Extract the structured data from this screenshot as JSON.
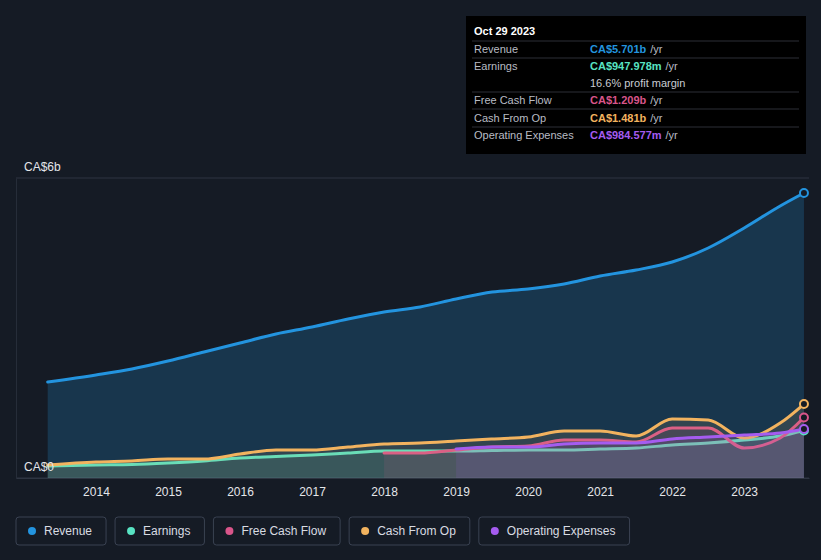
{
  "chart_data": {
    "type": "area",
    "x": [
      2013.33,
      2014,
      2014.5,
      2015,
      2015.5,
      2016,
      2016.5,
      2017,
      2017.5,
      2018,
      2018.5,
      2019,
      2019.5,
      2020,
      2020.5,
      2021,
      2021.5,
      2022,
      2022.5,
      2023,
      2023.5,
      2023.83
    ],
    "series": [
      {
        "name": "Revenue",
        "color": "#2394df",
        "values": [
          1.92,
          2.06,
          2.18,
          2.34,
          2.52,
          2.7,
          2.88,
          3.02,
          3.18,
          3.32,
          3.42,
          3.58,
          3.72,
          3.78,
          3.88,
          4.04,
          4.16,
          4.32,
          4.6,
          5.0,
          5.44,
          5.7
        ]
      },
      {
        "name": "Earnings",
        "color": "#58e3c3",
        "values": [
          0.24,
          0.26,
          0.27,
          0.3,
          0.34,
          0.4,
          0.43,
          0.46,
          0.5,
          0.54,
          0.54,
          0.54,
          0.55,
          0.56,
          0.56,
          0.58,
          0.6,
          0.66,
          0.7,
          0.76,
          0.84,
          0.95
        ]
      },
      {
        "name": "Free Cash Flow",
        "color": "#d9558a",
        "values": [
          null,
          null,
          null,
          null,
          null,
          null,
          null,
          null,
          null,
          0.5,
          0.5,
          0.56,
          0.62,
          0.64,
          0.76,
          0.76,
          0.72,
          1.0,
          1.0,
          0.6,
          0.8,
          1.21
        ]
      },
      {
        "name": "Cash From Op",
        "color": "#f2b35f",
        "values": [
          0.26,
          0.32,
          0.34,
          0.38,
          0.38,
          0.48,
          0.56,
          0.56,
          0.62,
          0.68,
          0.7,
          0.74,
          0.78,
          0.82,
          0.94,
          0.94,
          0.84,
          1.18,
          1.16,
          0.8,
          1.1,
          1.48
        ]
      },
      {
        "name": "Operating Expenses",
        "color": "#a55cf0",
        "values": [
          null,
          null,
          null,
          null,
          null,
          null,
          null,
          null,
          null,
          null,
          null,
          0.58,
          0.62,
          0.62,
          0.68,
          0.7,
          0.7,
          0.78,
          0.82,
          0.86,
          0.9,
          0.98
        ]
      }
    ],
    "xlim": [
      2012.89,
      2023.9
    ],
    "xticks": [
      2014,
      2015,
      2016,
      2017,
      2018,
      2019,
      2020,
      2021,
      2022,
      2023
    ],
    "ylim": [
      0,
      6
    ],
    "yticks": [
      {
        "value": 0,
        "label": "CA$0"
      },
      {
        "value": 6,
        "label": "CA$6b"
      }
    ],
    "grid": true,
    "legend": "bottom",
    "tooltip": {
      "date": "Oct 29 2023",
      "unit": "/yr",
      "margin": "16.6% profit margin",
      "rows": [
        {
          "label": "Revenue",
          "value": "CA$5.701b",
          "color": "#2394df"
        },
        {
          "label": "Earnings",
          "value": "CA$947.978m",
          "color": "#58e3c3"
        },
        {
          "label": "Free Cash Flow",
          "value": "CA$1.209b",
          "color": "#d9558a"
        },
        {
          "label": "Cash From Op",
          "value": "CA$1.481b",
          "color": "#f2b35f"
        },
        {
          "label": "Operating Expenses",
          "value": "CA$984.577m",
          "color": "#a55cf0"
        }
      ]
    }
  }
}
